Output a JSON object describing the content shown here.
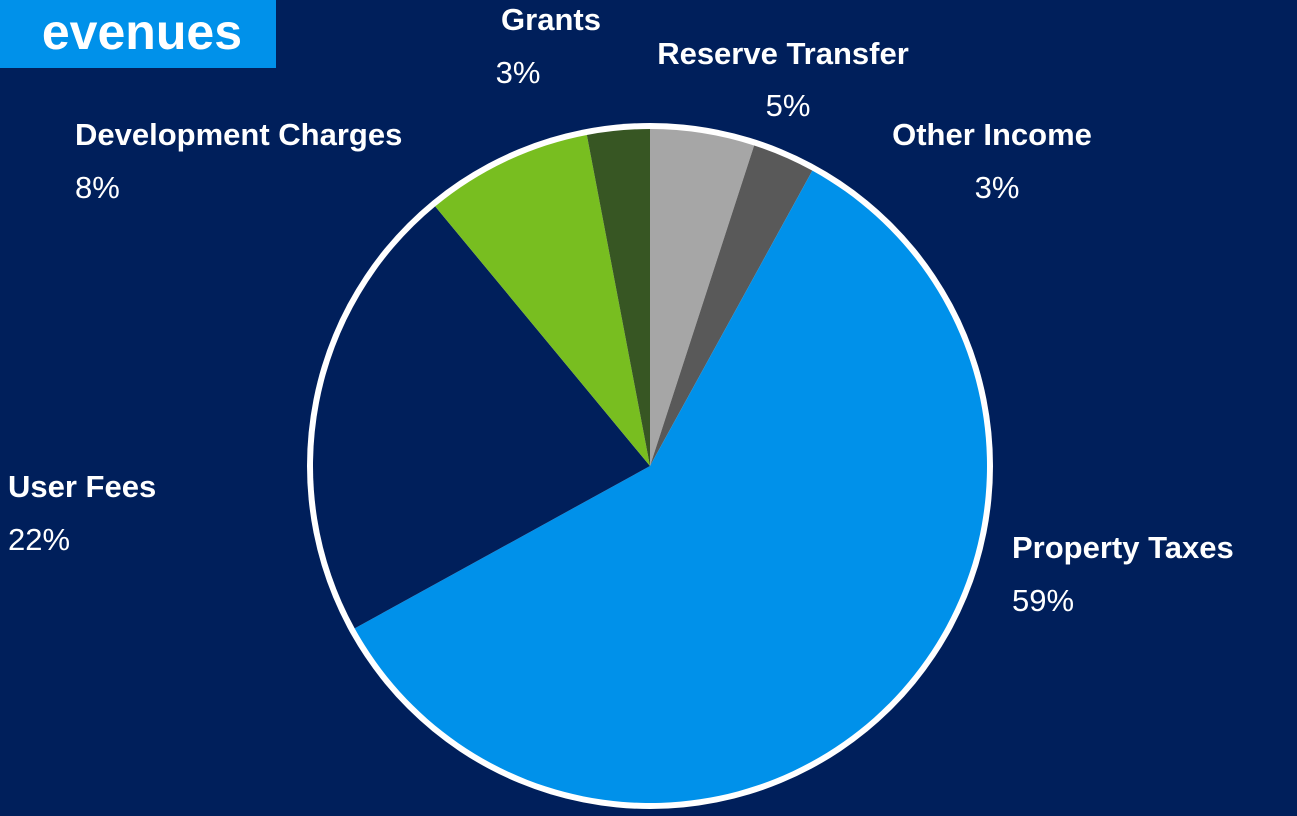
{
  "chart_data": {
    "type": "pie",
    "title": "evenues",
    "categories": [
      "Reserve Transfer",
      "Other Income",
      "Property Taxes",
      "User Fees",
      "Development Charges",
      "Grants"
    ],
    "values": [
      5,
      3,
      59,
      22,
      8,
      3
    ],
    "value_labels": [
      "5%",
      "3%",
      "59%",
      "22%",
      "8%",
      "3%"
    ],
    "colors": [
      "#a6a6a6",
      "#595959",
      "#0091ea",
      "#001f5b",
      "#78be20",
      "#375623"
    ]
  }
}
